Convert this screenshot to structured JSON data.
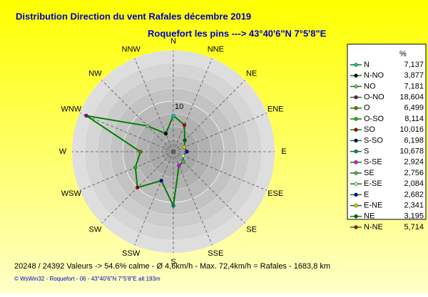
{
  "chart_data": {
    "type": "radar",
    "title": "Distribution Direction du vent Rafales  décembre 2019",
    "subtitle": "Roquefort les pins    --->  43°40'6\"N 7°5'8\"E",
    "categories": [
      "N",
      "NNW",
      "NW",
      "WNW",
      "W",
      "WSW",
      "SW",
      "SSW",
      "S",
      "SSE",
      "SE",
      "ESE",
      "E",
      "ENE",
      "NE",
      "NNE"
    ],
    "legend_title": "%",
    "legend_labels": [
      "N",
      "N-NO",
      "NO",
      "O-NO",
      "O",
      "O-SO",
      "SO",
      "S-SO",
      "S",
      "S-SE",
      "SE",
      "E-SE",
      "E",
      "E-NE",
      "NE",
      "N-NE"
    ],
    "values": [
      7.137,
      3.877,
      7.181,
      18.604,
      6.499,
      8.114,
      10.016,
      6.198,
      10.678,
      2.924,
      2.756,
      2.084,
      2.682,
      2.341,
      3.195,
      5.714
    ],
    "value_labels": [
      "7,137",
      "3,877",
      "7,181",
      "18,604",
      "6,499",
      "8,114",
      "10,016",
      "6,198",
      "10,678",
      "2,924",
      "2,756",
      "2,084",
      "2,682",
      "2,341",
      "3,195",
      "5,714"
    ],
    "line_color": "#008000",
    "marker_colors": [
      "#00c0c0",
      "#000000",
      "#90b090",
      "#800080",
      "#707000",
      "#00c000",
      "#a00000",
      "#000080",
      "#008080",
      "#e000e0",
      "#60a060",
      "#c0e0c0",
      "#0000c0",
      "#e0c000",
      "#006000",
      "#c00000"
    ],
    "rlim": [
      0,
      20
    ],
    "rticks": [
      10
    ],
    "footer": "20248 / 24392 Valeurs  -> 54.6% calme   -   Ø 4,6km/h   -   Max. 72,4km/h = Rafales   -   1683,8 km",
    "credit": "© WsWin32  -  Roquefort - 06  -  43°40'6\"N 7°5'8\"E alt 193m"
  }
}
